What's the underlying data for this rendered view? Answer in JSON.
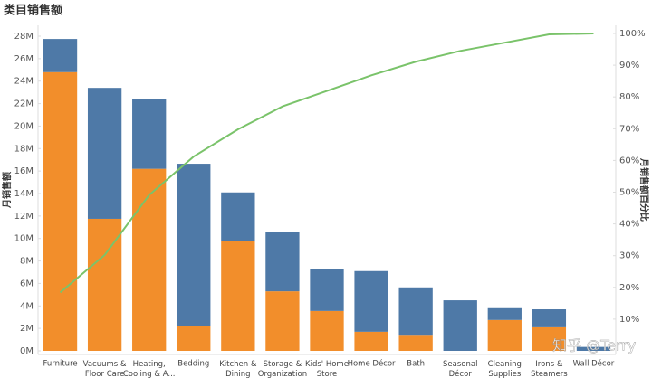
{
  "chart_data": {
    "type": "pareto",
    "title": "类目销售额",
    "y_label": "月销售额",
    "y2_label": "月销售额百分比",
    "watermark": "知乎 @Terry",
    "categories": [
      "Furniture",
      "Vacuums &\nFloor Care",
      "Heating,\nCooling & A...",
      "Bedding",
      "Kitchen &\nDining",
      "Storage &\nOrganization",
      "Kids' Home\nStore",
      "Home Décor",
      "Bath",
      "Seasonal\nDécor",
      "Cleaning\nSupplies",
      "Irons &\nSteamers",
      "Wall Décor"
    ],
    "series": [
      {
        "color": "#f28e2b",
        "values": [
          24.8,
          11.75,
          16.2,
          2.25,
          9.75,
          5.3,
          3.55,
          1.7,
          1.35,
          0,
          2.75,
          2.1,
          0
        ]
      },
      {
        "color": "#4e79a7",
        "values": [
          2.95,
          11.65,
          6.2,
          14.4,
          4.35,
          5.25,
          3.75,
          5.4,
          4.3,
          4.5,
          1.05,
          1.6,
          0.35
        ]
      },
      {
        "color": "#7ac36a",
        "axis": "y2",
        "values": [
          18.4,
          30.2,
          49.1,
          61.2,
          69.8,
          77,
          81.9,
          86.8,
          91.1,
          94.5,
          97.1,
          99.7,
          100
        ]
      }
    ],
    "ylim": [
      0,
      28
    ],
    "yticks": [
      {
        "value": 0,
        "label": "0M"
      },
      {
        "value": 2,
        "label": "2M"
      },
      {
        "value": 4,
        "label": "4M"
      },
      {
        "value": 6,
        "label": "6M"
      },
      {
        "value": 8,
        "label": "8M"
      },
      {
        "value": 10,
        "label": "10M"
      },
      {
        "value": 12,
        "label": "12M"
      },
      {
        "value": 14,
        "label": "14M"
      },
      {
        "value": 16,
        "label": "16M"
      },
      {
        "value": 18,
        "label": "18M"
      },
      {
        "value": 20,
        "label": "20M"
      },
      {
        "value": 22,
        "label": "22M"
      },
      {
        "value": 24,
        "label": "24M"
      },
      {
        "value": 26,
        "label": "26M"
      },
      {
        "value": 28,
        "label": "28M"
      }
    ],
    "y2lim": [
      0,
      100
    ],
    "y2ticks": [
      {
        "value": 10,
        "label": "10%"
      },
      {
        "value": 20,
        "label": "20%"
      },
      {
        "value": 30,
        "label": "30%"
      },
      {
        "value": 40,
        "label": "40%"
      },
      {
        "value": 50,
        "label": "50%"
      },
      {
        "value": 60,
        "label": "60%"
      },
      {
        "value": 70,
        "label": "70%"
      },
      {
        "value": 80,
        "label": "80%"
      },
      {
        "value": 90,
        "label": "90%"
      },
      {
        "value": 100,
        "label": "100%"
      }
    ]
  }
}
